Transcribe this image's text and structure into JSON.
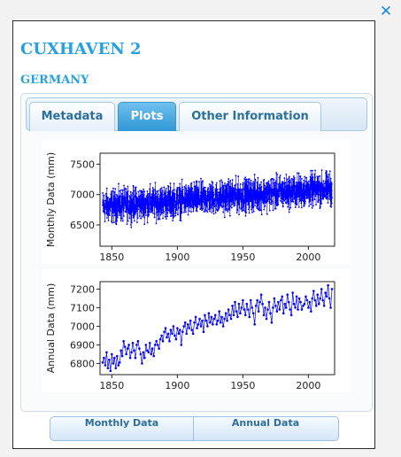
{
  "window": {
    "close_label": "✕"
  },
  "station": {
    "name": "CUXHAVEN 2",
    "country": "GERMANY"
  },
  "tabs": [
    {
      "label": "Metadata",
      "active": false
    },
    {
      "label": "Plots",
      "active": true
    },
    {
      "label": "Other Information",
      "active": false
    }
  ],
  "buttons": {
    "monthly": "Monthly Data",
    "annual": "Annual Data"
  },
  "colors": {
    "accent": "#27a1dd",
    "series": "#0000ff"
  },
  "chart_data": [
    {
      "type": "line",
      "ylabel": "Monthly Data (mm)",
      "xlabel": "",
      "xlim": [
        1841,
        2020
      ],
      "ylim": [
        6150,
        7680
      ],
      "x_ticks": [
        1850,
        1900,
        1950,
        2000
      ],
      "y_ticks": [
        6500,
        7000,
        7500
      ],
      "series": [
        {
          "x_start": 1843,
          "x_end": 2018,
          "trend_start": 6800,
          "trend_end": 7100,
          "noise_amplitude": 380,
          "markers": true
        }
      ]
    },
    {
      "type": "line",
      "ylabel": "Annual Data (mm)",
      "xlabel": "",
      "xlim": [
        1841,
        2020
      ],
      "ylim": [
        6740,
        7240
      ],
      "x_ticks": [
        1850,
        1900,
        1950,
        2000
      ],
      "y_ticks": [
        6800,
        6900,
        7000,
        7100,
        7200
      ],
      "series": [
        {
          "x_start": 1843,
          "values": [
            6805,
            6830,
            6790,
            6860,
            6775,
            6820,
            6760,
            6850,
            6800,
            6830,
            6775,
            6840,
            6790,
            6805,
            6870,
            6840,
            6920,
            6890,
            6850,
            6880,
            6900,
            6830,
            6860,
            6910,
            6870,
            6830,
            6900,
            6920,
            6880,
            6850,
            6800,
            6860,
            6830,
            6900,
            6870,
            6860,
            6910,
            6850,
            6880,
            6840,
            6900,
            6920,
            6900,
            6880,
            6930,
            6950,
            6920,
            6970,
            6990,
            6940,
            6960,
            6920,
            6980,
            6960,
            7000,
            6950,
            6930,
            6990,
            6960,
            6980,
            6900,
            6970,
            7000,
            7020,
            6960,
            7010,
            6990,
            7030,
            6980,
            6960,
            7020,
            7050,
            6990,
            7010,
            7040,
            7000,
            7030,
            6970,
            7060,
            7030,
            7000,
            7070,
            7020,
            7050,
            7010,
            7040,
            7060,
            7010,
            7030,
            7080,
            7020,
            7050,
            7000,
            7040,
            7070,
            7030,
            7090,
            7060,
            7040,
            7110,
            7060,
            7130,
            7080,
            7050,
            7120,
            7070,
            7100,
            7140,
            7090,
            7060,
            7120,
            7090,
            7050,
            7140,
            7100,
            7070,
            7010,
            7110,
            7140,
            7080,
            7130,
            7170,
            7120,
            7060,
            7100,
            7040,
            7090,
            7130,
            7070,
            7020,
            7100,
            7150,
            7110,
            7080,
            7130,
            7090,
            7140,
            7160,
            7070,
            7120,
            7100,
            7170,
            7130,
            7090,
            7060,
            7180,
            7120,
            7100,
            7160,
            7090,
            7150,
            7130,
            7090,
            7110,
            7120,
            7160,
            7140,
            7100,
            7130,
            7080,
            7150,
            7190,
            7140,
            7110,
            7170,
            7120,
            7150,
            7200,
            7140,
            7110,
            7180,
            7160,
            7220,
            7150,
            7100,
            7200
          ]
        }
      ]
    }
  ]
}
